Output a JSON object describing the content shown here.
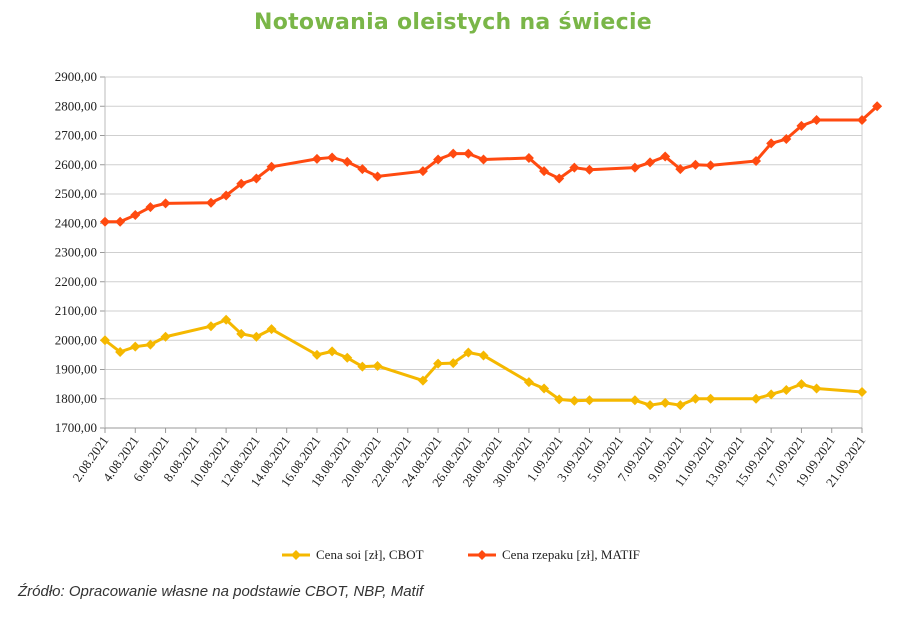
{
  "title": "Notowania oleistych na świecie",
  "source": "Źródło: Opracowanie własne na podstawie CBOT, NBP, Matif",
  "chart_data": {
    "type": "line",
    "title": "Notowania oleistych na świecie",
    "ylim": [
      1700,
      2900
    ],
    "yticks": [
      1700,
      1800,
      1900,
      2000,
      2100,
      2200,
      2300,
      2400,
      2500,
      2600,
      2700,
      2800,
      2900
    ],
    "ytick_labels": [
      "1700,00",
      "1800,00",
      "1900,00",
      "2000,00",
      "2100,00",
      "2200,00",
      "2300,00",
      "2400,00",
      "2500,00",
      "2600,00",
      "2700,00",
      "2800,00",
      "2900,00"
    ],
    "x_start": "2.08.2021",
    "x_end": "21.09.2021",
    "xtick_labels": [
      "2.08.2021",
      "4.08.2021",
      "6.08.2021",
      "8.08.2021",
      "10.08.2021",
      "12.08.2021",
      "14.08.2021",
      "16.08.2021",
      "18.08.2021",
      "20.08.2021",
      "22.08.2021",
      "24.08.2021",
      "26.08.2021",
      "28.08.2021",
      "30.08.2021",
      "1.09.2021",
      "3.09.2021",
      "5.09.2021",
      "7.09.2021",
      "9.09.2021",
      "11.09.2021",
      "13.09.2021",
      "15.09.2021",
      "17.09.2021",
      "19.09.2021",
      "21.09.2021"
    ],
    "series": [
      {
        "name": "Cena soi [zł], CBOT",
        "color": "#f5b800",
        "days": [
          0,
          1,
          2,
          3,
          4,
          7,
          8,
          9,
          10,
          11,
          14,
          15,
          16,
          17,
          18,
          21,
          22,
          23,
          24,
          25,
          28,
          29,
          30,
          31,
          32,
          35,
          36,
          37,
          38,
          39,
          40,
          43,
          44,
          45,
          46,
          47,
          50
        ],
        "values": [
          2000,
          1960,
          1978,
          1985,
          2012,
          2048,
          2070,
          2022,
          2012,
          2038,
          1950,
          1962,
          1940,
          1910,
          1912,
          1862,
          1920,
          1922,
          1958,
          1948,
          1857,
          1835,
          1798,
          1793,
          1795,
          1795,
          1778,
          1786,
          1778,
          1800,
          1800,
          1800,
          1815,
          1830,
          1850,
          1835,
          1823
        ]
      },
      {
        "name": "Cena rzepaku [zł], MATIF",
        "color": "#ff4a10",
        "days": [
          0,
          1,
          2,
          3,
          4,
          7,
          8,
          9,
          10,
          11,
          14,
          15,
          16,
          17,
          18,
          21,
          22,
          23,
          24,
          25,
          28,
          29,
          30,
          31,
          32,
          35,
          36,
          37,
          38,
          39,
          40,
          43,
          44,
          45,
          46,
          47,
          50,
          51
        ],
        "values": [
          2405,
          2405,
          2428,
          2455,
          2468,
          2470,
          2495,
          2535,
          2553,
          2593,
          2620,
          2625,
          2610,
          2585,
          2560,
          2578,
          2618,
          2638,
          2638,
          2618,
          2623,
          2578,
          2553,
          2590,
          2583,
          2590,
          2608,
          2628,
          2585,
          2600,
          2598,
          2613,
          2673,
          2688,
          2733,
          2753,
          2753,
          2800
        ]
      }
    ]
  }
}
